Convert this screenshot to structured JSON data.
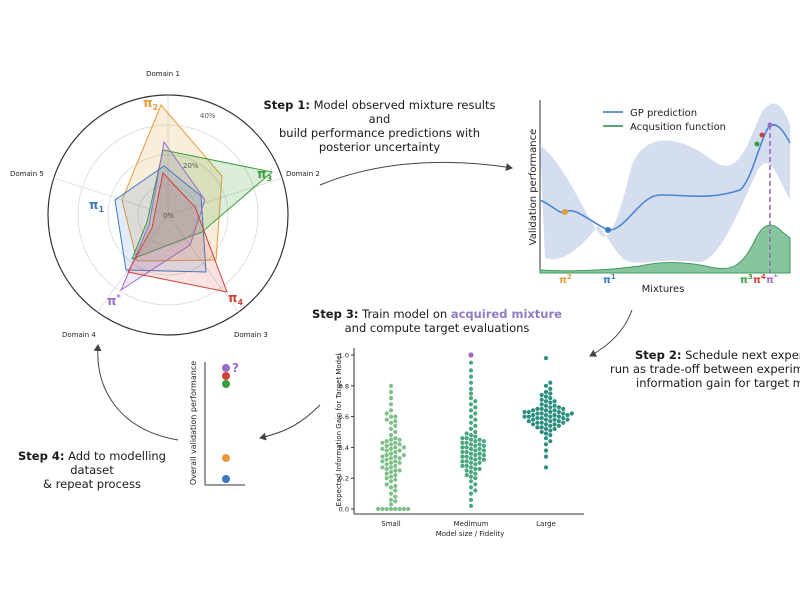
{
  "steps": {
    "step1": {
      "label": "Step 1:",
      "l1": "Model observed mixture results and",
      "l2": "build performance predictions with",
      "l3": "posterior uncertainty"
    },
    "step2": {
      "label": "Step 2:",
      "l1": "Schedule next experiment",
      "l2": "run as trade-off between experiment c",
      "l3": "information gain for target mode"
    },
    "step3": {
      "label": "Step 3:",
      "l1_pre": "Train model on",
      "l1_hl": "acquired mixture",
      "l2": "and compute target evaluations"
    },
    "step4": {
      "label": "Step 4:",
      "l1": "Add to modelling dataset",
      "l2": "& repeat process"
    }
  },
  "radar": {
    "domains": [
      "Domain 1",
      "Domain 2",
      "Domain 3",
      "Domain 4",
      "Domain 5"
    ],
    "ring_labels": [
      "0%",
      "20%",
      "40%"
    ],
    "policies": [
      {
        "label": "π",
        "sub": "2",
        "color": "#e69b3a"
      },
      {
        "label": "π",
        "sub": "3",
        "color": "#3aa03a"
      },
      {
        "label": "π",
        "sub": "1",
        "color": "#3a78c0"
      },
      {
        "label": "π",
        "sub": "*",
        "color": "#9a6cc8"
      },
      {
        "label": "π",
        "sub": "4",
        "color": "#d0403a"
      }
    ]
  },
  "gp_panel": {
    "legend": [
      "GP prediction",
      "Acqusition function"
    ],
    "ylabel": "Validation performance",
    "xlabel": "Mixtures",
    "xticks": [
      {
        "label": "π",
        "sub": "2",
        "color": "#e69b3a"
      },
      {
        "label": "π",
        "sub": "1",
        "color": "#3a78c0"
      },
      {
        "label": "π",
        "sub": "3",
        "color": "#3aa03a"
      },
      {
        "label": "π",
        "sub": "4",
        "color": "#d0403a"
      },
      {
        "label": "π",
        "sub": "*",
        "color": "#9a6cc8"
      }
    ]
  },
  "overall_panel": {
    "ylabel": "Overall validation performance",
    "question": "?"
  },
  "chart_data": {
    "type": "scatter",
    "title": "",
    "xlabel": "Model size / Fidelity",
    "ylabel": "Expected Information Gain for Target Model",
    "categories": [
      "Small",
      "Medimum",
      "Large"
    ],
    "yticks": [
      "0.0",
      "0.2",
      "0.4",
      "0.6",
      "0.8",
      "1.0"
    ],
    "ylim": [
      0,
      1.0
    ],
    "series": [
      {
        "category": "Small",
        "color": "#7fbf8a",
        "values": [
          0.0,
          0.0,
          0.0,
          0.0,
          0.0,
          0.0,
          0.0,
          0.0,
          0.03,
          0.06,
          0.08,
          0.1,
          0.12,
          0.14,
          0.16,
          0.18,
          0.2,
          0.21,
          0.22,
          0.24,
          0.25,
          0.26,
          0.27,
          0.28,
          0.29,
          0.3,
          0.31,
          0.32,
          0.33,
          0.34,
          0.35,
          0.36,
          0.37,
          0.38,
          0.39,
          0.4,
          0.41,
          0.42,
          0.43,
          0.44,
          0.45,
          0.46,
          0.48,
          0.5,
          0.52,
          0.54,
          0.56,
          0.58,
          0.6,
          0.62,
          0.64,
          0.68,
          0.72,
          0.76,
          0.8,
          0.19,
          0.23,
          0.27,
          0.31,
          0.35,
          0.39,
          0.43,
          0.3,
          0.34,
          0.38,
          0.42,
          0.25,
          0.33,
          0.4,
          0.45,
          0.6,
          0.57,
          0.15,
          0.05
        ]
      },
      {
        "category": "Medimum",
        "color": "#4aa77f",
        "values": [
          0.02,
          0.06,
          0.1,
          0.12,
          0.14,
          0.16,
          0.18,
          0.2,
          0.21,
          0.22,
          0.23,
          0.24,
          0.25,
          0.26,
          0.27,
          0.28,
          0.29,
          0.3,
          0.31,
          0.32,
          0.33,
          0.34,
          0.35,
          0.36,
          0.37,
          0.38,
          0.39,
          0.4,
          0.41,
          0.42,
          0.43,
          0.44,
          0.45,
          0.46,
          0.47,
          0.48,
          0.49,
          0.5,
          0.52,
          0.54,
          0.56,
          0.58,
          0.6,
          0.62,
          0.64,
          0.66,
          0.68,
          0.7,
          0.72,
          0.75,
          0.78,
          0.82,
          0.86,
          0.9,
          0.95,
          0.3,
          0.33,
          0.36,
          0.39,
          0.42,
          0.45,
          0.28,
          0.31,
          0.34,
          0.37,
          0.4,
          0.43,
          0.46,
          0.35,
          0.38,
          0.41,
          0.32,
          0.44,
          0.26
        ]
      },
      {
        "category": "Large",
        "color": "#2a8f80",
        "values": [
          0.27,
          0.34,
          0.38,
          0.42,
          0.44,
          0.46,
          0.48,
          0.49,
          0.5,
          0.51,
          0.52,
          0.53,
          0.54,
          0.55,
          0.55,
          0.56,
          0.56,
          0.57,
          0.57,
          0.58,
          0.58,
          0.59,
          0.59,
          0.6,
          0.6,
          0.61,
          0.61,
          0.62,
          0.62,
          0.63,
          0.63,
          0.64,
          0.64,
          0.65,
          0.65,
          0.66,
          0.67,
          0.68,
          0.69,
          0.7,
          0.71,
          0.72,
          0.73,
          0.74,
          0.75,
          0.76,
          0.78,
          0.8,
          0.82,
          0.98,
          0.57,
          0.58,
          0.6,
          0.61,
          0.62,
          0.63,
          0.64,
          0.56,
          0.59,
          0.62,
          0.65,
          0.66,
          0.53,
          0.54,
          0.6,
          0.58,
          0.61,
          0.63,
          0.67,
          0.7,
          0.52,
          0.55
        ]
      },
      {
        "category": "Medimum",
        "color": "#9a6cc8",
        "values": [
          1.0
        ]
      }
    ]
  }
}
